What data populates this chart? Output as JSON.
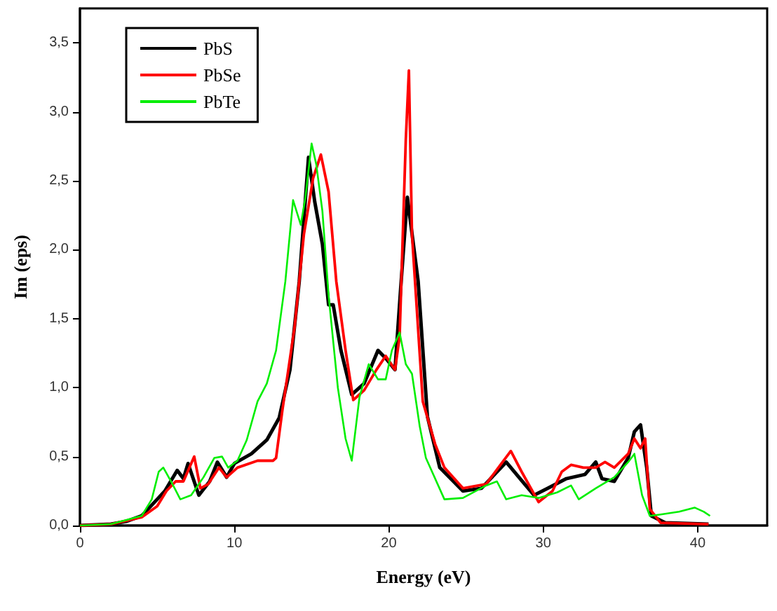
{
  "chart_data": {
    "type": "line",
    "xlabel": "Energy (eV)",
    "ylabel": "Im (eps)",
    "xlim": [
      0,
      44.5
    ],
    "ylim": [
      0,
      3.75
    ],
    "xticks": [
      0,
      10,
      20,
      30,
      40
    ],
    "yticks": [
      {
        "value": 0,
        "label": "0,0"
      },
      {
        "value": 0.5,
        "label": "0,5"
      },
      {
        "value": 1,
        "label": "1,0"
      },
      {
        "value": 1.5,
        "label": "1,5"
      },
      {
        "value": 2,
        "label": "2,0"
      },
      {
        "value": 2.5,
        "label": "2,5"
      },
      {
        "value": 3,
        "label": "3,0"
      },
      {
        "value": 3.5,
        "label": "3,5"
      }
    ],
    "grid": false,
    "legend": "top left",
    "marker": "none",
    "line_style": "solid",
    "series": [
      {
        "name": "PbS",
        "color": "#000000",
        "x": [
          0,
          2,
          3,
          4,
          5,
          5.5,
          6.3,
          6.7,
          7.0,
          7.7,
          8.4,
          8.9,
          9.5,
          10.0,
          11.1,
          12.1,
          12.9,
          13.6,
          14.2,
          14.8,
          15.2,
          15.7,
          16.1,
          16.4,
          16.9,
          17.6,
          18.4,
          19.3,
          19.9,
          20.4,
          20.8,
          21.2,
          21.9,
          22.5,
          23.3,
          24.8,
          26.0,
          27.6,
          28.5,
          29.4,
          30.3,
          31.5,
          32.7,
          33.4,
          33.8,
          34.6,
          35.5,
          35.9,
          36.3,
          36.7,
          37.0,
          37.9,
          40.7
        ],
        "values": [
          0,
          0.01,
          0.03,
          0.07,
          0.19,
          0.25,
          0.4,
          0.34,
          0.45,
          0.22,
          0.32,
          0.46,
          0.35,
          0.45,
          0.52,
          0.62,
          0.78,
          1.13,
          1.77,
          2.67,
          2.35,
          2.04,
          1.6,
          1.6,
          1.27,
          0.95,
          1.03,
          1.27,
          1.2,
          1.13,
          1.77,
          2.38,
          1.77,
          0.79,
          0.42,
          0.25,
          0.27,
          0.46,
          0.34,
          0.22,
          0.27,
          0.34,
          0.37,
          0.46,
          0.34,
          0.32,
          0.49,
          0.68,
          0.73,
          0.42,
          0.07,
          0.02,
          0.01
        ]
      },
      {
        "name": "PbSe",
        "color": "#ff0000",
        "x": [
          0,
          2,
          4,
          5,
          5.6,
          6.2,
          6.7,
          7.4,
          7.8,
          8.3,
          9.0,
          9.5,
          10.2,
          11.5,
          12.5,
          12.7,
          13.1,
          13.9,
          14.5,
          15.1,
          15.6,
          16.1,
          16.6,
          17.2,
          17.7,
          18.4,
          19.2,
          19.8,
          20.4,
          20.7,
          21.1,
          21.3,
          21.5,
          22.2,
          23.0,
          23.6,
          24.8,
          26.3,
          27.9,
          28.6,
          29.7,
          30.6,
          31.2,
          31.8,
          32.6,
          33.4,
          34.0,
          34.6,
          35.5,
          35.9,
          36.3,
          36.6,
          36.9,
          37.6,
          40.7
        ],
        "values": [
          0,
          0.01,
          0.06,
          0.14,
          0.25,
          0.32,
          0.32,
          0.5,
          0.27,
          0.3,
          0.42,
          0.35,
          0.42,
          0.47,
          0.47,
          0.49,
          0.83,
          1.44,
          2.11,
          2.52,
          2.69,
          2.42,
          1.77,
          1.27,
          0.91,
          0.98,
          1.13,
          1.23,
          1.13,
          1.37,
          2.8,
          3.3,
          2.11,
          0.9,
          0.59,
          0.42,
          0.27,
          0.3,
          0.54,
          0.39,
          0.17,
          0.25,
          0.39,
          0.44,
          0.42,
          0.42,
          0.46,
          0.42,
          0.52,
          0.63,
          0.56,
          0.63,
          0.12,
          0.02,
          0.01
        ]
      },
      {
        "name": "PbTe",
        "color": "#00ee00",
        "x": [
          0,
          2,
          4,
          4.65,
          5.1,
          5.4,
          5.9,
          6.5,
          7.2,
          8.0,
          8.7,
          9.2,
          9.6,
          10.2,
          10.8,
          11.5,
          12.1,
          12.7,
          13.3,
          13.8,
          14.3,
          14.6,
          15.0,
          15.3,
          15.7,
          16.1,
          16.7,
          17.2,
          17.6,
          18.1,
          18.7,
          19.3,
          19.8,
          20.2,
          20.7,
          21.1,
          21.5,
          22.0,
          22.4,
          23.6,
          24.8,
          26.3,
          27.0,
          27.6,
          28.6,
          29.7,
          30.9,
          31.8,
          32.3,
          33.4,
          34.6,
          35.5,
          35.9,
          36.4,
          36.9,
          37.6,
          38.8,
          39.8,
          40.4,
          40.8
        ],
        "values": [
          0,
          0.01,
          0.07,
          0.19,
          0.39,
          0.42,
          0.32,
          0.19,
          0.22,
          0.35,
          0.49,
          0.5,
          0.42,
          0.47,
          0.62,
          0.9,
          1.03,
          1.27,
          1.77,
          2.36,
          2.18,
          2.38,
          2.77,
          2.62,
          2.28,
          1.67,
          1.0,
          0.63,
          0.47,
          0.93,
          1.17,
          1.06,
          1.06,
          1.27,
          1.4,
          1.17,
          1.1,
          0.72,
          0.49,
          0.19,
          0.2,
          0.29,
          0.32,
          0.19,
          0.22,
          0.2,
          0.24,
          0.29,
          0.19,
          0.27,
          0.35,
          0.46,
          0.52,
          0.22,
          0.07,
          0.08,
          0.1,
          0.13,
          0.1,
          0.07
        ]
      }
    ]
  }
}
